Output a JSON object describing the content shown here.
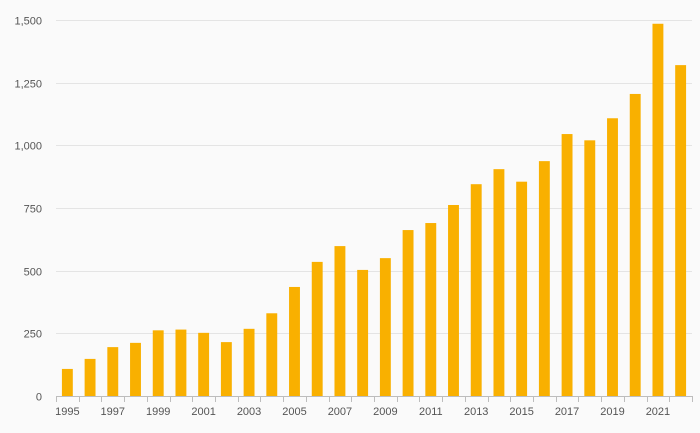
{
  "chart_data": {
    "type": "bar",
    "title": "",
    "xlabel": "",
    "ylabel": "",
    "categories": [
      "1995",
      "1996",
      "1997",
      "1998",
      "1999",
      "2000",
      "2001",
      "2002",
      "2003",
      "2004",
      "2005",
      "2006",
      "2007",
      "2008",
      "2009",
      "2010",
      "2011",
      "2012",
      "2013",
      "2014",
      "2015",
      "2016",
      "2017",
      "2018",
      "2019",
      "2020",
      "2021",
      "2022"
    ],
    "x_tick_labels": [
      "1995",
      "1997",
      "1999",
      "2001",
      "2003",
      "2005",
      "2007",
      "2009",
      "2011",
      "2013",
      "2015",
      "2017",
      "2019",
      "2021"
    ],
    "values": [
      108,
      148,
      195,
      212,
      262,
      265,
      252,
      215,
      268,
      330,
      435,
      535,
      598,
      503,
      550,
      662,
      690,
      762,
      845,
      905,
      855,
      937,
      1045,
      1020,
      1108,
      1205,
      1485,
      1320
    ],
    "ylim": [
      0,
      1500
    ],
    "y_ticks": [
      0,
      250,
      500,
      750,
      1000,
      1250,
      1500
    ],
    "y_tick_labels": [
      "0",
      "250",
      "500",
      "750",
      "1,000",
      "1,250",
      "1,500"
    ],
    "grid": true,
    "legend": "none",
    "bar_color": "#f9b000",
    "background_color": "#fafafa"
  }
}
